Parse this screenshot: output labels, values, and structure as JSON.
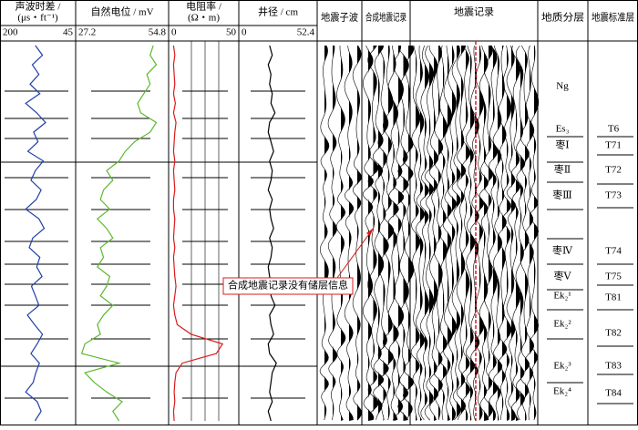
{
  "chart_data": [
    {
      "type": "line",
      "title": "声波时差 /",
      "subtitle": "(μs・ft⁻¹)",
      "xlim": [
        200,
        45
      ],
      "color": "#1f3fa8",
      "values": [
        128,
        112,
        135,
        120,
        140,
        118,
        150,
        125,
        105,
        132,
        122,
        145,
        110,
        128,
        138,
        115,
        126,
        150,
        120,
        108,
        134,
        142,
        118,
        125,
        113,
        137,
        128,
        120,
        146,
        130,
        112,
        124,
        138,
        119,
        127,
        133,
        150,
        124,
        115,
        129
      ]
    },
    {
      "type": "line",
      "title": "自然电位 / mV",
      "xlim": [
        27.2,
        54.8
      ],
      "color": "#5cb82e",
      "values": [
        51,
        50,
        52,
        49,
        50,
        48,
        46,
        47,
        52,
        50,
        45,
        42,
        40,
        36,
        38,
        35,
        34,
        37,
        33,
        36,
        38,
        34,
        35,
        33,
        37,
        36,
        34,
        38,
        35,
        33,
        34,
        29,
        28,
        40,
        29,
        32,
        36,
        41,
        38,
        40
      ]
    },
    {
      "type": "line",
      "title": "电阻率 /",
      "subtitle": "(Ω・m)",
      "xlim": [
        0,
        50
      ],
      "color": "#d91c1c",
      "values": [
        1,
        2,
        1,
        1.5,
        2,
        1,
        2.5,
        1,
        3,
        2,
        1.5,
        1,
        2,
        1,
        1.5,
        2,
        1,
        1,
        2,
        1.5,
        1,
        2,
        1,
        1.5,
        2,
        3,
        2,
        1,
        2,
        4,
        15,
        40,
        35,
        8,
        3,
        2,
        1.5,
        2,
        1,
        1.5
      ]
    },
    {
      "type": "line",
      "title": "井径 / cm",
      "xlim": [
        0,
        52.4
      ],
      "color": "#000000",
      "values": [
        20,
        22,
        19,
        21,
        20,
        22,
        21,
        24,
        20,
        19,
        21,
        23,
        20,
        22,
        21,
        19,
        22,
        20,
        21,
        23,
        20,
        22,
        21,
        19,
        20,
        22,
        21,
        24,
        20,
        21,
        23,
        19,
        20,
        25,
        22,
        21,
        20,
        22,
        19,
        21
      ]
    }
  ],
  "columns": [
    "地震子波",
    "合成地震记录",
    "地震记录",
    "地质分层",
    "地震标准层"
  ],
  "layers": [
    "Ng",
    "Es₃",
    "枣Ⅰ",
    "枣Ⅱ",
    "枣Ⅲ",
    "枣Ⅳ",
    "枣Ⅴ",
    "Ek₂¹",
    "Ek₂²",
    "Ek₂³",
    "Ek₂⁴"
  ],
  "standard_layers": [
    "T6",
    "T71",
    "T72",
    "T73",
    "T74",
    "T75",
    "T81",
    "T82",
    "T83",
    "T84"
  ],
  "annotation": "合成地震记录没有储层信息"
}
